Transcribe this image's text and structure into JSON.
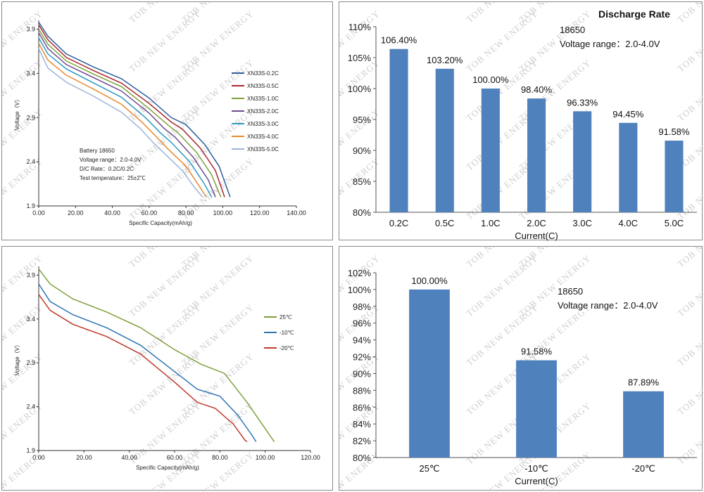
{
  "watermark": "TOB NEW ENERGY",
  "chart_data": [
    {
      "type": "line",
      "xlabel": "Specific Capacity(mAh/g)",
      "ylabel": "Voltage（V）",
      "xlim": [
        0,
        140
      ],
      "ylim": [
        1.9,
        4.0
      ],
      "xticks": [
        "0.00",
        "20.00",
        "40.00",
        "60.00",
        "80.00",
        "100.00",
        "120.00",
        "140.00"
      ],
      "yticks": [
        "1.9",
        "2.4",
        "2.9",
        "3.4",
        "3.9"
      ],
      "legend_position": "right",
      "annotation": [
        "Battery 18650",
        "Voltage  range：2.0-4.0V",
        "D/C Rate：0.2C/0.2C",
        "Test temperature：25±2℃"
      ],
      "series": [
        {
          "name": "XN33S-0.2C",
          "color": "#2f5f9e",
          "points": [
            [
              0,
              3.98
            ],
            [
              5,
              3.82
            ],
            [
              15,
              3.62
            ],
            [
              30,
              3.47
            ],
            [
              45,
              3.34
            ],
            [
              60,
              3.12
            ],
            [
              72,
              2.9
            ],
            [
              80,
              2.82
            ],
            [
              90,
              2.6
            ],
            [
              98,
              2.35
            ],
            [
              104,
              2.0
            ]
          ]
        },
        {
          "name": "XN33S-0.5C",
          "color": "#a8282e",
          "points": [
            [
              0,
              3.95
            ],
            [
              5,
              3.78
            ],
            [
              15,
              3.58
            ],
            [
              30,
              3.43
            ],
            [
              45,
              3.29
            ],
            [
              60,
              3.06
            ],
            [
              72,
              2.85
            ],
            [
              78,
              2.77
            ],
            [
              88,
              2.55
            ],
            [
              96,
              2.3
            ],
            [
              101,
              2.0
            ]
          ]
        },
        {
          "name": "XN33S-1.0C",
          "color": "#7ea03a",
          "points": [
            [
              0,
              3.9
            ],
            [
              5,
              3.73
            ],
            [
              15,
              3.54
            ],
            [
              30,
              3.39
            ],
            [
              45,
              3.25
            ],
            [
              60,
              3.0
            ],
            [
              70,
              2.82
            ],
            [
              76,
              2.72
            ],
            [
              86,
              2.5
            ],
            [
              94,
              2.25
            ],
            [
              99,
              2.0
            ]
          ]
        },
        {
          "name": "XN33S-2.0C",
          "color": "#6a4b8e",
          "points": [
            [
              0,
              3.86
            ],
            [
              5,
              3.68
            ],
            [
              15,
              3.5
            ],
            [
              30,
              3.35
            ],
            [
              45,
              3.2
            ],
            [
              60,
              2.95
            ],
            [
              68,
              2.78
            ],
            [
              74,
              2.68
            ],
            [
              84,
              2.45
            ],
            [
              92,
              2.2
            ],
            [
              96,
              2.0
            ]
          ]
        },
        {
          "name": "XN33S-3.0C",
          "color": "#2e9ac0",
          "points": [
            [
              0,
              3.8
            ],
            [
              5,
              3.62
            ],
            [
              15,
              3.45
            ],
            [
              30,
              3.29
            ],
            [
              45,
              3.13
            ],
            [
              58,
              2.9
            ],
            [
              66,
              2.73
            ],
            [
              72,
              2.62
            ],
            [
              82,
              2.4
            ],
            [
              90,
              2.15
            ],
            [
              94,
              2.0
            ]
          ]
        },
        {
          "name": "XN33S-4.0C",
          "color": "#e68a2e",
          "points": [
            [
              0,
              3.74
            ],
            [
              5,
              3.55
            ],
            [
              15,
              3.38
            ],
            [
              30,
              3.22
            ],
            [
              45,
              3.05
            ],
            [
              56,
              2.85
            ],
            [
              64,
              2.68
            ],
            [
              70,
              2.55
            ],
            [
              80,
              2.35
            ],
            [
              88,
              2.1
            ],
            [
              91,
              2.0
            ]
          ]
        },
        {
          "name": "XN33S-5.0C",
          "color": "#9db4da",
          "points": [
            [
              0,
              3.68
            ],
            [
              5,
              3.46
            ],
            [
              15,
              3.3
            ],
            [
              30,
              3.14
            ],
            [
              45,
              2.96
            ],
            [
              55,
              2.78
            ],
            [
              62,
              2.62
            ],
            [
              68,
              2.5
            ],
            [
              78,
              2.3
            ],
            [
              85,
              2.1
            ],
            [
              89,
              2.0
            ]
          ]
        }
      ]
    },
    {
      "type": "bar",
      "title": "Discharge Rate",
      "annotation": [
        "18650",
        "Voltage  range：2.0-4.0V"
      ],
      "categories": [
        "0.2C",
        "0.5C",
        "1.0C",
        "2.0C",
        "3.0C",
        "4.0C",
        "5.0C"
      ],
      "values": [
        106.4,
        103.2,
        100.0,
        98.4,
        96.33,
        94.45,
        91.58
      ],
      "data_labels": [
        "106.40%",
        "103.20%",
        "100.00%",
        "98.40%",
        "96.33%",
        "94.45%",
        "91.58%"
      ],
      "xlabel": "Current(C)",
      "ylim": [
        80,
        110
      ],
      "yticks": [
        "80%",
        "85%",
        "90%",
        "95%",
        "100%",
        "105%",
        "110%"
      ],
      "bar_color": "#4f81bd"
    },
    {
      "type": "line",
      "xlabel": "Specific Capacity(mAh/g)",
      "ylabel": "Voltage（V）",
      "xlim": [
        0,
        120
      ],
      "ylim": [
        1.9,
        4.0
      ],
      "xticks": [
        "0.00",
        "20.00",
        "40.00",
        "60.00",
        "80.00",
        "100.00",
        "120.00"
      ],
      "yticks": [
        "1.9",
        "2.4",
        "2.9",
        "3.4",
        "3.9"
      ],
      "legend_position": "right",
      "series": [
        {
          "name": "25℃",
          "color": "#7ea03a",
          "points": [
            [
              0,
              3.97
            ],
            [
              5,
              3.8
            ],
            [
              15,
              3.63
            ],
            [
              30,
              3.48
            ],
            [
              45,
              3.3
            ],
            [
              60,
              3.05
            ],
            [
              72,
              2.88
            ],
            [
              82,
              2.78
            ],
            [
              92,
              2.45
            ],
            [
              100,
              2.15
            ],
            [
              104,
              2.0
            ]
          ]
        },
        {
          "name": "-10℃",
          "color": "#2e75b6",
          "points": [
            [
              0,
              3.8
            ],
            [
              5,
              3.6
            ],
            [
              15,
              3.45
            ],
            [
              30,
              3.3
            ],
            [
              45,
              3.1
            ],
            [
              60,
              2.8
            ],
            [
              70,
              2.6
            ],
            [
              80,
              2.52
            ],
            [
              88,
              2.3
            ],
            [
              94,
              2.08
            ],
            [
              96,
              2.0
            ]
          ]
        },
        {
          "name": "-20℃",
          "color": "#c0392b",
          "points": [
            [
              0,
              3.68
            ],
            [
              5,
              3.5
            ],
            [
              15,
              3.34
            ],
            [
              30,
              3.2
            ],
            [
              45,
              3.0
            ],
            [
              60,
              2.68
            ],
            [
              70,
              2.45
            ],
            [
              78,
              2.38
            ],
            [
              86,
              2.2
            ],
            [
              91,
              2.02
            ],
            [
              92,
              2.0
            ]
          ]
        }
      ]
    },
    {
      "type": "bar",
      "annotation": [
        "18650",
        "Voltage  range：2.0-4.0V"
      ],
      "categories": [
        "25℃",
        "-10℃",
        "-20℃"
      ],
      "values": [
        100.0,
        91.58,
        87.89
      ],
      "data_labels": [
        "100.00%",
        "91.58%",
        "87.89%"
      ],
      "xlabel": "Current(C)",
      "ylim": [
        80,
        102
      ],
      "yticks": [
        "80%",
        "82%",
        "84%",
        "86%",
        "88%",
        "90%",
        "92%",
        "94%",
        "96%",
        "98%",
        "100%",
        "102%"
      ],
      "bar_color": "#4f81bd"
    }
  ]
}
